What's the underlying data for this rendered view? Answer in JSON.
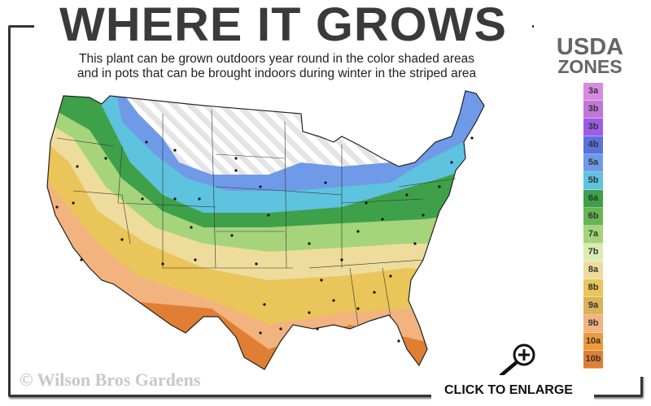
{
  "header": {
    "title": "WHERE IT GROWS",
    "subtitle_line1": "This plant can be grown outdoors year round in the color shaded areas",
    "subtitle_line2": "and in pots that can be brought indoors during winter in the striped area"
  },
  "legend": {
    "title_line1": "USDA",
    "title_line2": "ZONES",
    "zones": [
      {
        "label": "3a",
        "color": "#d78ce0"
      },
      {
        "label": "3b",
        "color": "#c077d8"
      },
      {
        "label": "3b",
        "color": "#9c5ee6"
      },
      {
        "label": "4b",
        "color": "#5a72dc"
      },
      {
        "label": "5a",
        "color": "#6f9ae8"
      },
      {
        "label": "5b",
        "color": "#5ec3de"
      },
      {
        "label": "6a",
        "color": "#3ea14a"
      },
      {
        "label": "6b",
        "color": "#67b552"
      },
      {
        "label": "7a",
        "color": "#a5d47a"
      },
      {
        "label": "7b",
        "color": "#dcebb2"
      },
      {
        "label": "8a",
        "color": "#eedc9c"
      },
      {
        "label": "8b",
        "color": "#e9c55a"
      },
      {
        "label": "9a",
        "color": "#d9b25a"
      },
      {
        "label": "9b",
        "color": "#f2b37e"
      },
      {
        "label": "10a",
        "color": "#ee9a3c"
      },
      {
        "label": "10b",
        "color": "#e07f34"
      }
    ]
  },
  "footer": {
    "copyright": "© Wilson Bros Gardens",
    "enlarge_label": "CLICK TO ENLARGE",
    "enlarge_icon": "zoom-in-magnifier-icon"
  }
}
